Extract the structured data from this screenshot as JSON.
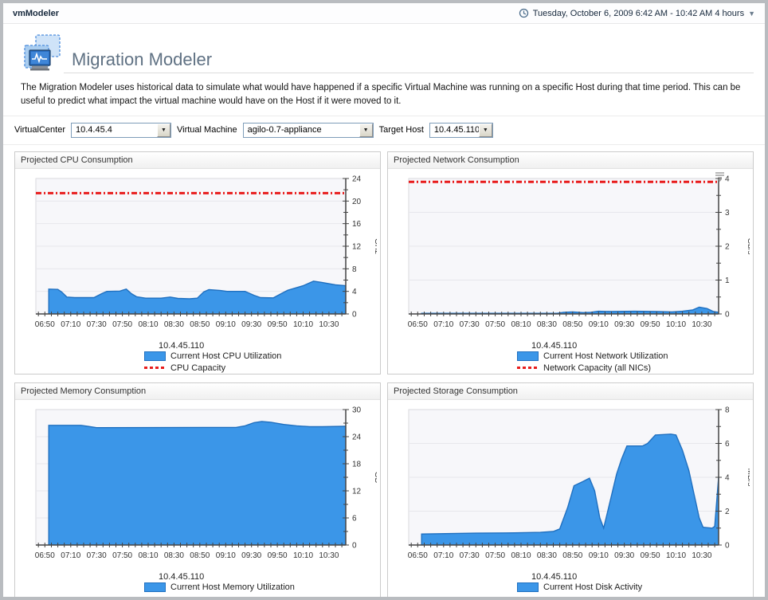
{
  "header": {
    "app_title": "vmModeler",
    "date_range": "Tuesday, October 6, 2009 6:42 AM - 10:42 AM 4 hours",
    "dropdown_glyph": "▼"
  },
  "page": {
    "title": "Migration Modeler",
    "description": "The Migration Modeler uses historical data to simulate what would have happened if a specific Virtual Machine was running on a specific Host during that time period. This can be useful to predict what impact the virtual machine would have on the Host if it were moved to it."
  },
  "filters": {
    "virtualcenter_label": "VirtualCenter",
    "virtualcenter_value": "10.4.45.4",
    "vm_label": "Virtual Machine",
    "vm_value": "agilo-0.7-appliance",
    "target_label": "Target Host",
    "target_value": "10.4.45.110"
  },
  "colors": {
    "area_fill": "#3b96e8",
    "area_stroke": "#2070c0",
    "capacity": "#e81c1c",
    "axis": "#444444",
    "grid": "#e7e7ec",
    "plot_bg": "#f7f7fa",
    "plot_border": "#dadade"
  },
  "chart_data": [
    {
      "type": "area",
      "panel_title": "Projected CPU Consumption",
      "ylabel": "GHz",
      "ylim": [
        0,
        24
      ],
      "y_major": 4,
      "y_minor": 2,
      "x_tick_labels": [
        "06:50",
        "07:10",
        "07:30",
        "07:50",
        "08:10",
        "08:30",
        "08:50",
        "09:10",
        "09:30",
        "09:50",
        "10:10",
        "10:30"
      ],
      "x_domain_minutes": [
        -7,
        233
      ],
      "x_label_step_min": 20,
      "x_minor_step_min": 5,
      "series_group_label": "10.4.45.110",
      "series": [
        {
          "name": "Current Host CPU Utilization",
          "points": [
            [
              3,
              0
            ],
            [
              3,
              4.4
            ],
            [
              10,
              4.35
            ],
            [
              13,
              3.9
            ],
            [
              17,
              3.0
            ],
            [
              23,
              2.9
            ],
            [
              38,
              2.9
            ],
            [
              44,
              3.6
            ],
            [
              48,
              4.0
            ],
            [
              58,
              4.05
            ],
            [
              63,
              4.4
            ],
            [
              67,
              3.6
            ],
            [
              71,
              3.05
            ],
            [
              78,
              2.8
            ],
            [
              90,
              2.8
            ],
            [
              97,
              3.0
            ],
            [
              103,
              2.75
            ],
            [
              112,
              2.7
            ],
            [
              118,
              2.8
            ],
            [
              123,
              3.9
            ],
            [
              127,
              4.3
            ],
            [
              136,
              4.15
            ],
            [
              141,
              4.0
            ],
            [
              155,
              4.0
            ],
            [
              162,
              3.3
            ],
            [
              167,
              2.9
            ],
            [
              177,
              2.85
            ],
            [
              183,
              3.6
            ],
            [
              188,
              4.2
            ],
            [
              194,
              4.6
            ],
            [
              200,
              5.0
            ],
            [
              208,
              5.8
            ],
            [
              214,
              5.6
            ],
            [
              225,
              5.15
            ],
            [
              233,
              5.0
            ]
          ]
        }
      ],
      "capacity": {
        "label": "CPU Capacity",
        "value": 21.4
      }
    },
    {
      "type": "area",
      "panel_title": "Projected Network Consumption",
      "ylabel": "Gb/s",
      "ylim": [
        0,
        4
      ],
      "y_major": 1,
      "y_minor": 0.5,
      "x_tick_labels": [
        "06:50",
        "07:10",
        "07:30",
        "07:50",
        "08:10",
        "08:30",
        "08:50",
        "09:10",
        "09:30",
        "09:50",
        "10:10",
        "10:30"
      ],
      "x_domain_minutes": [
        -7,
        233
      ],
      "x_label_step_min": 20,
      "x_minor_step_min": 5,
      "series_group_label": "10.4.45.110",
      "series": [
        {
          "name": "Current Host Network Utilization",
          "points": [
            [
              3,
              0
            ],
            [
              3,
              0.02
            ],
            [
              108,
              0.02
            ],
            [
              113,
              0.05
            ],
            [
              120,
              0.06
            ],
            [
              128,
              0.04
            ],
            [
              134,
              0.05
            ],
            [
              140,
              0.08
            ],
            [
              150,
              0.07
            ],
            [
              168,
              0.08
            ],
            [
              185,
              0.07
            ],
            [
              197,
              0.06
            ],
            [
              205,
              0.08
            ],
            [
              213,
              0.12
            ],
            [
              218,
              0.2
            ],
            [
              224,
              0.16
            ],
            [
              229,
              0.07
            ],
            [
              233,
              0.05
            ]
          ]
        }
      ],
      "capacity": {
        "label": "Network Capacity (all NICs)",
        "value": 3.9
      }
    },
    {
      "type": "area",
      "panel_title": "Projected Memory Consumption",
      "ylabel": "GB",
      "ylim": [
        0,
        30
      ],
      "y_major": 6,
      "y_minor": 3,
      "x_tick_labels": [
        "06:50",
        "07:10",
        "07:30",
        "07:50",
        "08:10",
        "08:30",
        "08:50",
        "09:10",
        "09:30",
        "09:50",
        "10:10",
        "10:30"
      ],
      "x_domain_minutes": [
        -7,
        233
      ],
      "x_label_step_min": 20,
      "x_minor_step_min": 5,
      "series_group_label": "10.4.45.110",
      "series": [
        {
          "name": "Current Host Memory Utilization",
          "points": [
            [
              3,
              0
            ],
            [
              3,
              26.5
            ],
            [
              28,
              26.5
            ],
            [
              33,
              26.3
            ],
            [
              40,
              26.0
            ],
            [
              148,
              26.05
            ],
            [
              155,
              26.4
            ],
            [
              162,
              27.1
            ],
            [
              168,
              27.35
            ],
            [
              175,
              27.2
            ],
            [
              185,
              26.7
            ],
            [
              195,
              26.4
            ],
            [
              205,
              26.2
            ],
            [
              215,
              26.2
            ],
            [
              233,
              26.3
            ]
          ]
        }
      ],
      "capacity": null
    },
    {
      "type": "area",
      "panel_title": "Projected Storage Consumption",
      "ylabel": "MB/s",
      "ylim": [
        0,
        8
      ],
      "y_major": 2,
      "y_minor": 1,
      "x_tick_labels": [
        "06:50",
        "07:10",
        "07:30",
        "07:50",
        "08:10",
        "08:30",
        "08:50",
        "09:10",
        "09:30",
        "09:50",
        "10:10",
        "10:30"
      ],
      "x_domain_minutes": [
        -7,
        233
      ],
      "x_label_step_min": 20,
      "x_minor_step_min": 5,
      "series_group_label": "10.4.45.110",
      "series": [
        {
          "name": "Current Host Disk Activity",
          "points": [
            [
              3,
              0
            ],
            [
              3,
              0.65
            ],
            [
              45,
              0.7
            ],
            [
              75,
              0.72
            ],
            [
              95,
              0.75
            ],
            [
              105,
              0.8
            ],
            [
              110,
              0.95
            ],
            [
              116,
              2.2
            ],
            [
              121,
              3.5
            ],
            [
              128,
              3.75
            ],
            [
              133,
              3.95
            ],
            [
              137,
              3.2
            ],
            [
              141,
              1.6
            ],
            [
              144,
              1.0
            ],
            [
              149,
              2.6
            ],
            [
              154,
              4.2
            ],
            [
              158,
              5.1
            ],
            [
              162,
              5.85
            ],
            [
              174,
              5.85
            ],
            [
              178,
              6.0
            ],
            [
              184,
              6.5
            ],
            [
              196,
              6.55
            ],
            [
              200,
              6.5
            ],
            [
              205,
              5.6
            ],
            [
              210,
              4.4
            ],
            [
              214,
              3.0
            ],
            [
              218,
              1.6
            ],
            [
              221,
              1.05
            ],
            [
              228,
              1.0
            ],
            [
              230,
              1.1
            ],
            [
              233,
              4.0
            ]
          ]
        }
      ],
      "capacity": null
    }
  ]
}
